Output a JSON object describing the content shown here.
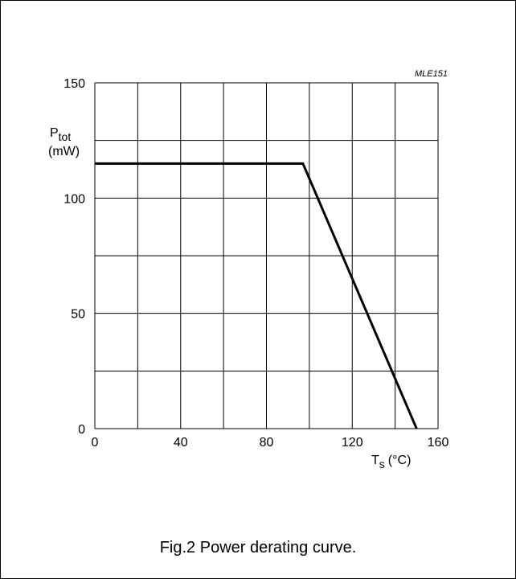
{
  "chart_data": {
    "type": "line",
    "figure_code": "MLE151",
    "caption": "Fig.2  Power derating curve.",
    "ylabel": {
      "main": "P",
      "sub": "tot",
      "unit": "(mW)"
    },
    "xlabel": {
      "main": "T",
      "sub": "s",
      "unit": "(°C)"
    },
    "xlim": [
      0,
      160
    ],
    "ylim": [
      0,
      150
    ],
    "x_ticks": [
      0,
      40,
      80,
      120,
      160
    ],
    "y_ticks": [
      0,
      50,
      100,
      150
    ],
    "x_grid_step": 20,
    "y_grid_step": 25,
    "grid": true,
    "series": [
      {
        "x": [
          0,
          97,
          150
        ],
        "y": [
          115,
          115,
          0
        ]
      }
    ]
  }
}
